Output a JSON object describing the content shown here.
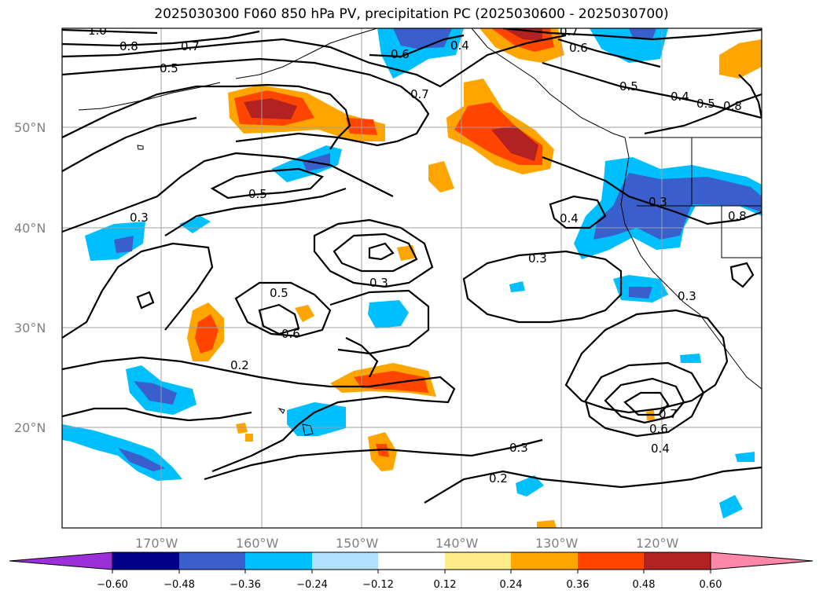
{
  "title": "2025030300 F060 850 hPa PV, precipitation PC (2025030600 - 2025030700)",
  "map": {
    "lat_labels": [
      "50°N",
      "40°N",
      "30°N",
      "20°N"
    ],
    "lon_labels": [
      "170°W",
      "160°W",
      "150°W",
      "140°W",
      "130°W",
      "120°W"
    ],
    "gridlines": true
  },
  "colorbar": {
    "colors": [
      "#9b30d9",
      "#00008b",
      "#3a5fcd",
      "#00bfff",
      "#b0e2ff",
      "#ffffff",
      "#ffec8b",
      "#ffa500",
      "#ff4500",
      "#b22222",
      "#ff88aa"
    ],
    "extend": "both",
    "tick_labels": [
      "−0.60",
      "−0.48",
      "−0.36",
      "−0.24",
      "−0.12",
      "0.12",
      "0.24",
      "0.36",
      "0.48",
      "0.60"
    ]
  },
  "contour_labels": [
    "1.0",
    "0.8",
    "0.7",
    "0.5",
    "0.6",
    "0.4",
    "0.7",
    "0.6",
    "0.7",
    "0.5",
    "0.4",
    "0.5",
    "0.8",
    "0.5",
    "0.3",
    "0.3",
    "0.4",
    "0.3",
    "0.3",
    "0.5",
    "0.6",
    "0.2",
    "0.3",
    "0.2",
    "0.6",
    "0.4",
    "0.7",
    "0.8",
    "0.3"
  ],
  "features": {
    "pv_contours": "black",
    "coastlines": "black"
  }
}
